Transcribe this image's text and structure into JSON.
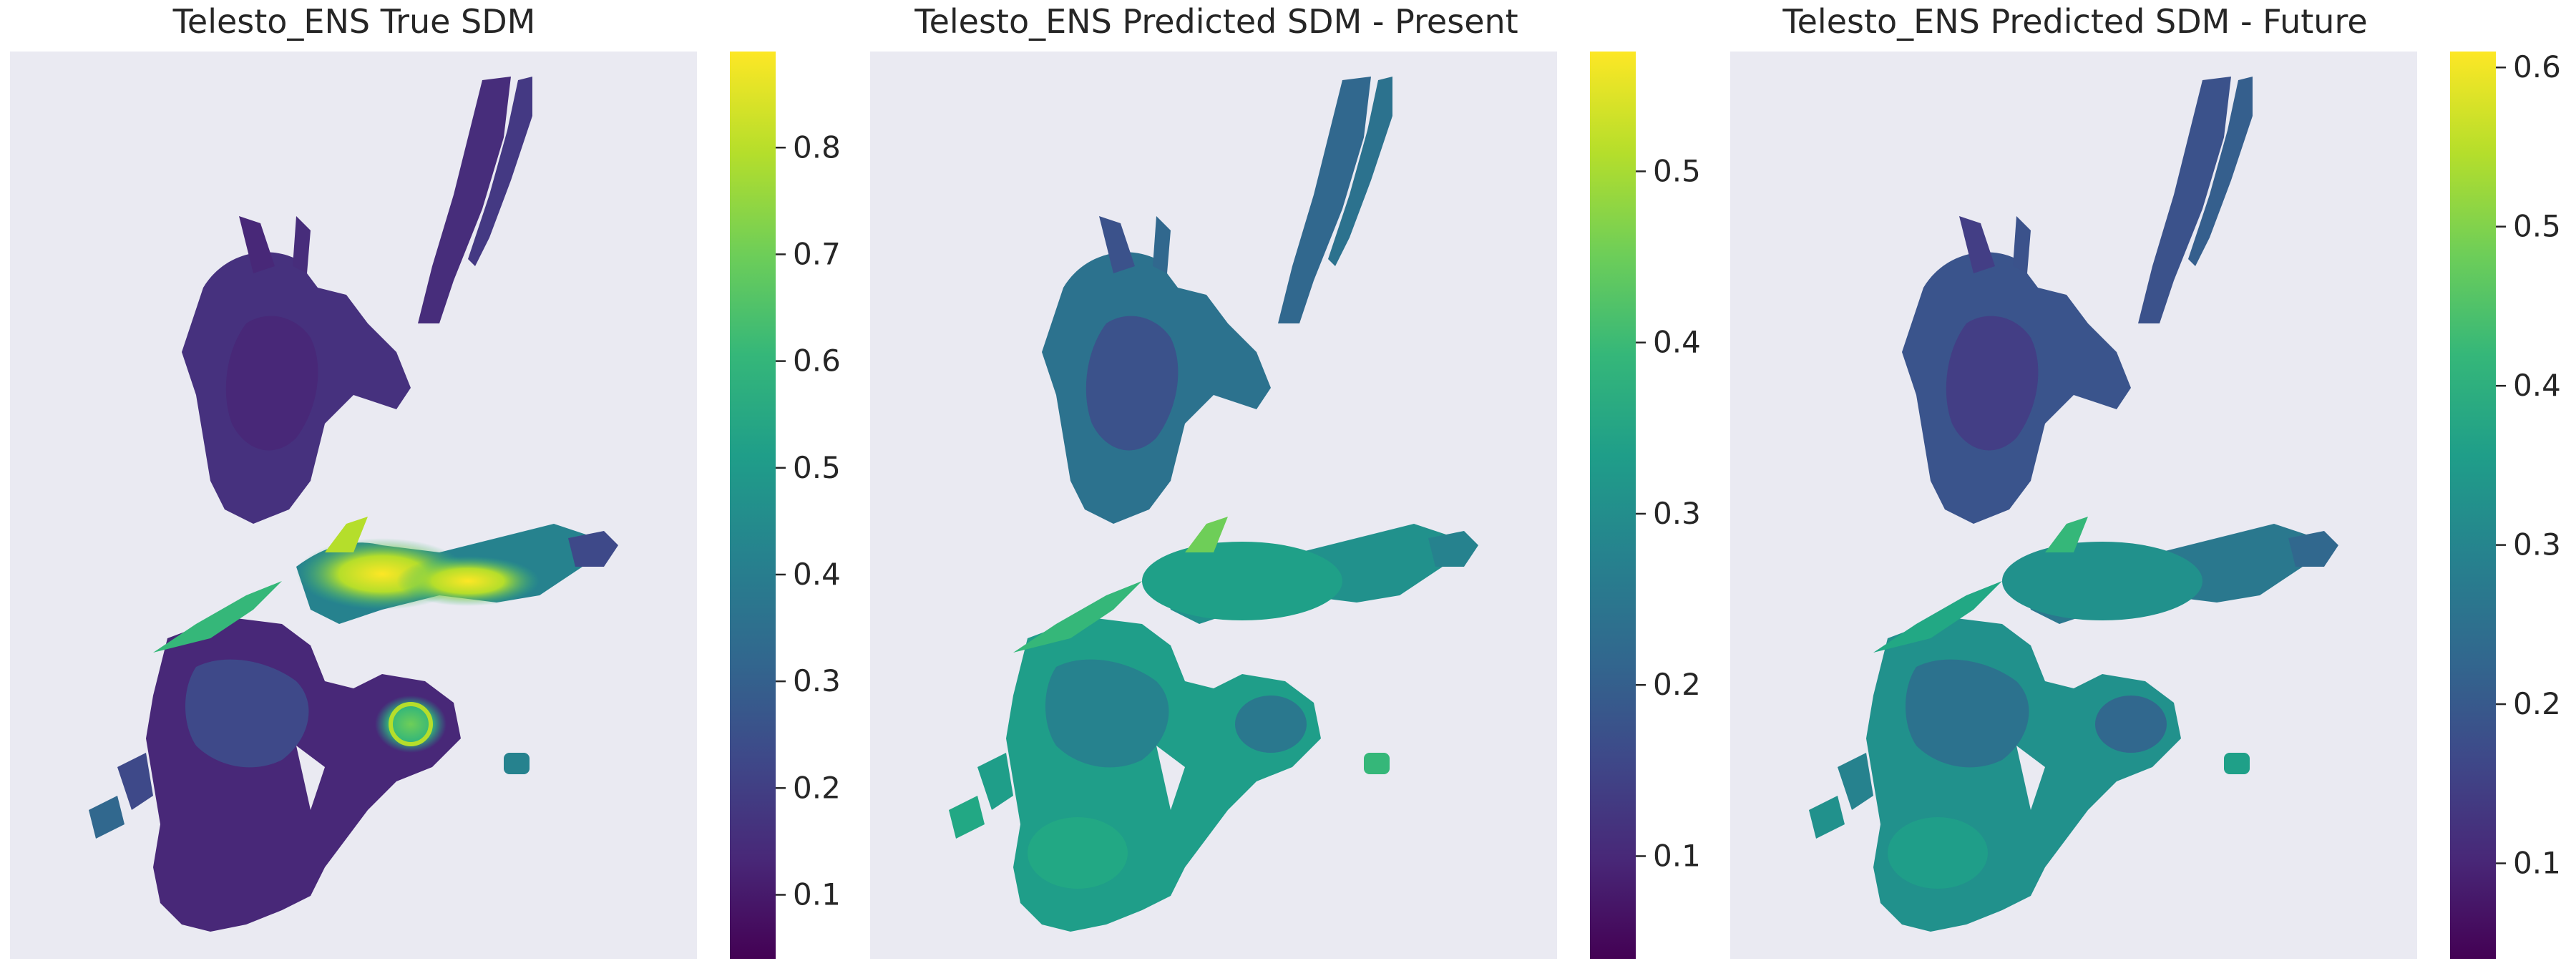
{
  "chart_data": [
    {
      "type": "heatmap",
      "title": "Telesto_ENS True SDM",
      "colormap": "viridis",
      "colorbar": {
        "range": [
          0.04,
          0.89
        ],
        "ticks": [
          0.1,
          0.2,
          0.3,
          0.4,
          0.5,
          0.6,
          0.7,
          0.8
        ],
        "tick_labels": [
          "0.1",
          "0.2",
          "0.3",
          "0.4",
          "0.5",
          "0.6",
          "0.7",
          "0.8"
        ]
      }
    },
    {
      "type": "heatmap",
      "title": "Telesto_ENS Predicted SDM - Present",
      "colormap": "viridis",
      "colorbar": {
        "range": [
          0.04,
          0.57
        ],
        "ticks": [
          0.1,
          0.2,
          0.3,
          0.4,
          0.5
        ],
        "tick_labels": [
          "0.1",
          "0.2",
          "0.3",
          "0.4",
          "0.5"
        ]
      }
    },
    {
      "type": "heatmap",
      "title": "Telesto_ENS Predicted SDM - Future",
      "colormap": "viridis",
      "colorbar": {
        "range": [
          0.04,
          0.61
        ],
        "ticks": [
          0.1,
          0.2,
          0.3,
          0.4,
          0.5,
          0.6
        ],
        "tick_labels": [
          "0.1",
          "0.2",
          "0.3",
          "0.4",
          "0.5",
          "0.6"
        ]
      }
    }
  ],
  "colors": {
    "axes_background": "#eaeaf2",
    "viridis": [
      "#440154",
      "#482878",
      "#3e4989",
      "#31688e",
      "#26828e",
      "#1f9e89",
      "#35b779",
      "#6ece58",
      "#b5de2b",
      "#fde725"
    ]
  }
}
